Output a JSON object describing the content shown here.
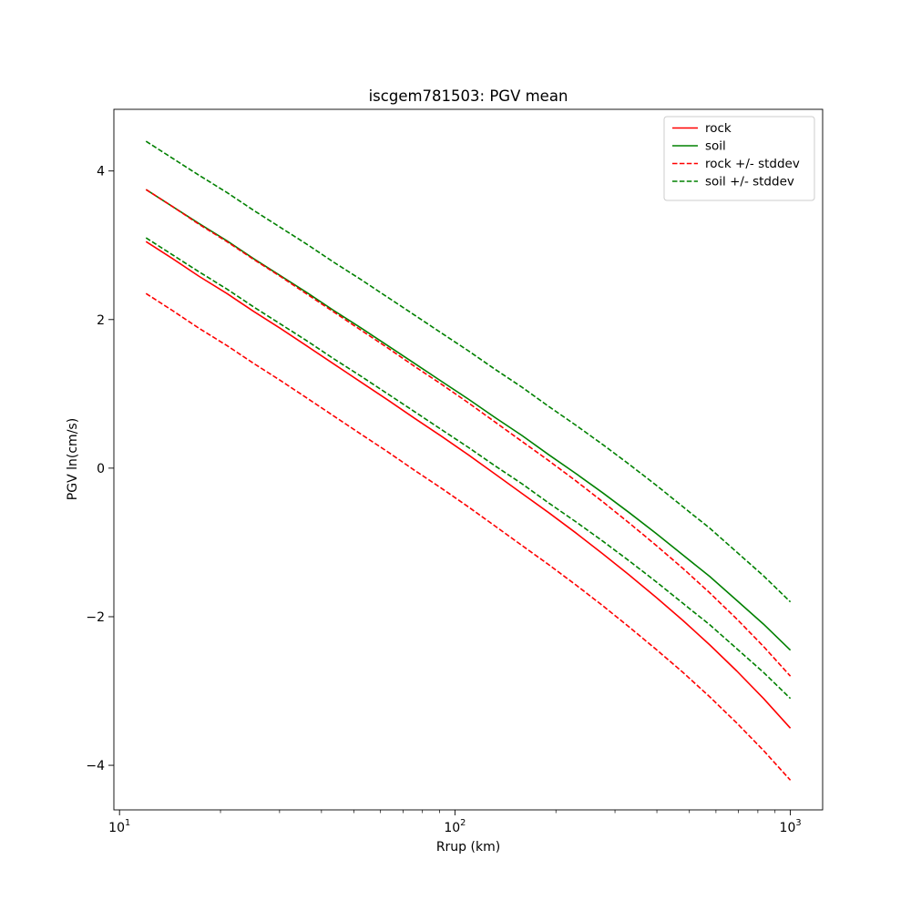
{
  "chart_data": {
    "type": "line",
    "title": "iscgem781503: PGV mean",
    "xlabel": "Rrup (km)",
    "ylabel": "PGV ln(cm/s)",
    "x_scale": "log",
    "y_scale": "linear",
    "grid": false,
    "xlim": [
      9.62,
      1248
    ],
    "ylim": [
      -4.6,
      4.83
    ],
    "x_ticks": [
      {
        "value": 10,
        "base": "10",
        "exponent": "1"
      },
      {
        "value": 100,
        "base": "10",
        "exponent": "2"
      },
      {
        "value": 1000,
        "base": "10",
        "exponent": "3"
      }
    ],
    "y_ticks": [
      {
        "value": -4,
        "label": "−4"
      },
      {
        "value": -2,
        "label": "−2"
      },
      {
        "value": 0,
        "label": "0"
      },
      {
        "value": 2,
        "label": "2"
      },
      {
        "value": 4,
        "label": "4"
      }
    ],
    "stddev": {
      "rock": 0.7,
      "soil": 0.65
    },
    "colors": {
      "rock": "#ff0000",
      "soil": "#008000"
    },
    "x": [
      12.0,
      14.4,
      17.3,
      20.9,
      25.1,
      30.2,
      36.3,
      43.6,
      52.4,
      63.0,
      75.8,
      91.1,
      109.6,
      131.8,
      158.4,
      190.5,
      229.1,
      275.4,
      331.1,
      398.1,
      478.6,
      575.4,
      691.8,
      831.8,
      1000.0
    ],
    "series": [
      {
        "name": "rock",
        "legend_label": "rock",
        "color": "#ff0000",
        "dash": "solid",
        "y": [
          3.05,
          2.82,
          2.58,
          2.35,
          2.11,
          1.88,
          1.64,
          1.4,
          1.16,
          0.92,
          0.67,
          0.43,
          0.18,
          -0.08,
          -0.34,
          -0.6,
          -0.87,
          -1.15,
          -1.44,
          -1.74,
          -2.05,
          -2.38,
          -2.73,
          -3.1,
          -3.5
        ]
      },
      {
        "name": "soil",
        "legend_label": "soil",
        "color": "#008000",
        "dash": "solid",
        "y": [
          3.75,
          3.52,
          3.29,
          3.06,
          2.82,
          2.59,
          2.36,
          2.12,
          1.89,
          1.65,
          1.41,
          1.17,
          0.93,
          0.68,
          0.44,
          0.18,
          -0.07,
          -0.33,
          -0.6,
          -0.88,
          -1.17,
          -1.46,
          -1.78,
          -2.1,
          -2.45
        ]
      },
      {
        "name": "rock-plus-stddev",
        "legend_label": "rock +/- stddev",
        "color": "#ff0000",
        "dash": "dashed",
        "y": [
          3.75,
          3.52,
          3.28,
          3.05,
          2.81,
          2.58,
          2.34,
          2.1,
          1.86,
          1.62,
          1.37,
          1.13,
          0.88,
          0.62,
          0.36,
          0.1,
          -0.17,
          -0.45,
          -0.74,
          -1.04,
          -1.35,
          -1.68,
          -2.03,
          -2.4,
          -2.8
        ]
      },
      {
        "name": "rock-minus-stddev",
        "legend_label": null,
        "color": "#ff0000",
        "dash": "dashed",
        "y": [
          2.35,
          2.12,
          1.88,
          1.65,
          1.41,
          1.18,
          0.94,
          0.7,
          0.46,
          0.22,
          -0.03,
          -0.27,
          -0.52,
          -0.78,
          -1.04,
          -1.3,
          -1.57,
          -1.85,
          -2.14,
          -2.44,
          -2.75,
          -3.08,
          -3.43,
          -3.8,
          -4.2
        ]
      },
      {
        "name": "soil-plus-stddev",
        "legend_label": "soil +/- stddev",
        "color": "#008000",
        "dash": "dashed",
        "y": [
          4.4,
          4.17,
          3.94,
          3.71,
          3.47,
          3.24,
          3.01,
          2.77,
          2.54,
          2.3,
          2.06,
          1.82,
          1.58,
          1.33,
          1.09,
          0.83,
          0.58,
          0.32,
          0.05,
          -0.23,
          -0.52,
          -0.81,
          -1.13,
          -1.45,
          -1.8
        ]
      },
      {
        "name": "soil-minus-stddev",
        "legend_label": null,
        "color": "#008000",
        "dash": "dashed",
        "y": [
          3.1,
          2.87,
          2.64,
          2.41,
          2.17,
          1.94,
          1.71,
          1.47,
          1.24,
          1.0,
          0.76,
          0.52,
          0.28,
          0.03,
          -0.21,
          -0.47,
          -0.72,
          -0.98,
          -1.25,
          -1.53,
          -1.82,
          -2.11,
          -2.43,
          -2.75,
          -3.1
        ]
      }
    ],
    "legend": {
      "position": "upper right",
      "entries": [
        {
          "label": "rock",
          "color": "#ff0000",
          "dash": "solid"
        },
        {
          "label": "soil",
          "color": "#008000",
          "dash": "solid"
        },
        {
          "label": "rock +/- stddev",
          "color": "#ff0000",
          "dash": "dashed"
        },
        {
          "label": "soil +/- stddev",
          "color": "#008000",
          "dash": "dashed"
        }
      ]
    }
  }
}
